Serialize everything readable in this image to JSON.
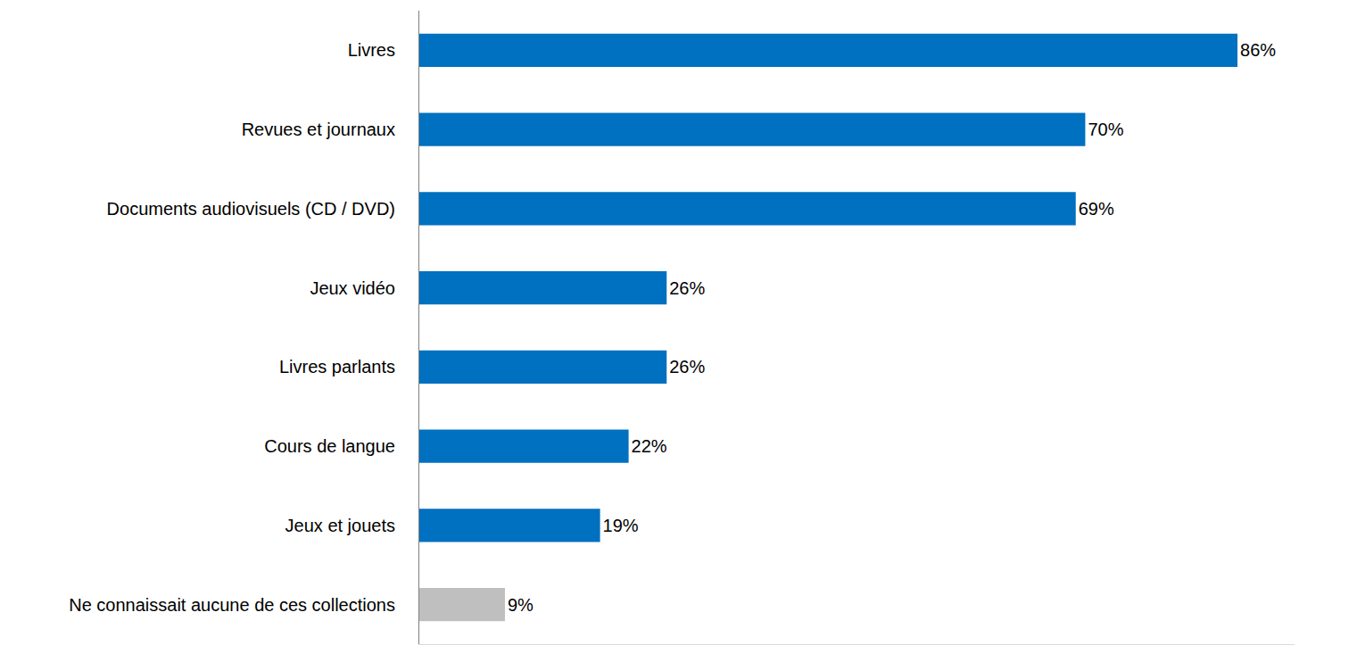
{
  "chart_data": {
    "type": "bar",
    "orientation": "horizontal",
    "categories": [
      "Livres",
      "Revues et journaux",
      "Documents audiovisuels (CD / DVD)",
      "Jeux vidéo",
      "Livres parlants",
      "Cours de langue",
      "Jeux et jouets",
      "Ne connaissait aucune de ces collections"
    ],
    "values": [
      86,
      70,
      69,
      26,
      26,
      22,
      19,
      9
    ],
    "value_labels": [
      "86%",
      "70%",
      "69%",
      "26%",
      "26%",
      "22%",
      "19%",
      "9%"
    ],
    "colors": [
      "#0070c0",
      "#0070c0",
      "#0070c0",
      "#0070c0",
      "#0070c0",
      "#0070c0",
      "#0070c0",
      "#bfbfbf"
    ],
    "xlim": [
      0,
      92
    ],
    "xticks": [],
    "tick_labels": "y",
    "data_labels": true,
    "grid": false
  }
}
